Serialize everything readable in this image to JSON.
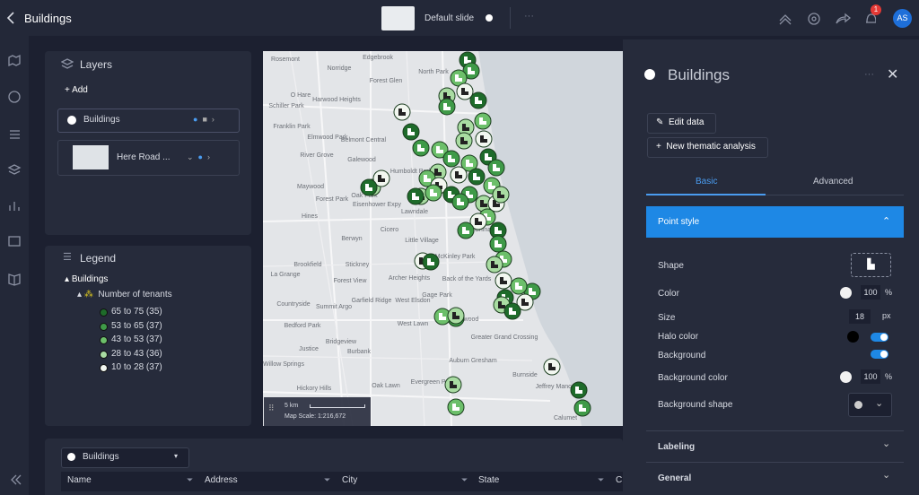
{
  "header": {
    "title": "Buildings",
    "slide": "Default slide",
    "notification_count": "1",
    "avatar": "AS"
  },
  "layers_panel": {
    "title": "Layers",
    "add": "Add",
    "layers": [
      "Buildings",
      "Here Road ..."
    ]
  },
  "legend_panel": {
    "title": "Legend",
    "layer": "Buildings",
    "field": "Number of tenants",
    "classes": [
      {
        "label": "65 to 75 (35)",
        "color": "#1e6b2a"
      },
      {
        "label": "53 to 65 (37)",
        "color": "#3f9a48"
      },
      {
        "label": "43 to 53 (37)",
        "color": "#6cbf6a"
      },
      {
        "label": "28 to 43 (36)",
        "color": "#a9dca2"
      },
      {
        "label": "10 to 28 (37)",
        "color": "#f2f7f0"
      }
    ]
  },
  "map": {
    "labels": [
      "Rosemont",
      "Edgebrook",
      "Norridge",
      "Forest Glen",
      "North Park",
      "O Hare",
      "Harwood Heights",
      "Schiller Park",
      "Franklin Park",
      "Elmwood Park",
      "Belmont Central",
      "River Grove",
      "Galewood",
      "Maywood",
      "Forest Park",
      "Oak Park",
      "Hines",
      "Eisenhower Expy",
      "Humboldt Park",
      "Berwyn",
      "Cicero",
      "Little Village",
      "Lawndale",
      "China",
      "McKinley Park",
      "Brookfield",
      "Stickney",
      "Archer Heights",
      "La Grange",
      "Forest View",
      "Back of the Yards",
      "Countryside",
      "Summit Argo",
      "Garfield Ridge",
      "West Elsdon",
      "Gage Park",
      "Bedford Park",
      "West Lawn",
      "Englewood",
      "Justice",
      "Bridgeview",
      "Burbank",
      "Greater Grand Crossing",
      "Willow Springs",
      "Hickory Hills",
      "Oak Lawn",
      "Evergreen Park",
      "Auburn Gresham",
      "Burnside",
      "Jeffrey Manor",
      "Calumet"
    ],
    "scale": "5 km",
    "map_scale": "Map Scale: 1:216,672"
  },
  "right_panel": {
    "title": "Buildings",
    "edit_data": "Edit data",
    "new_analysis": "New thematic analysis",
    "tabs": [
      "Basic",
      "Advanced"
    ],
    "section": "Point style",
    "rows": [
      {
        "label": "Shape"
      },
      {
        "label": "Color",
        "value": "100",
        "unit": "%"
      },
      {
        "label": "Size",
        "value": "18",
        "unit": "px"
      },
      {
        "label": "Halo color"
      },
      {
        "label": "Background"
      },
      {
        "label": "Background color",
        "value": "100",
        "unit": "%"
      },
      {
        "label": "Background shape"
      }
    ],
    "collapsed_sections": [
      "Labeling",
      "General"
    ]
  },
  "table": {
    "layer": "Buildings",
    "columns": [
      "Name",
      "Address",
      "City",
      "State",
      "C"
    ]
  }
}
